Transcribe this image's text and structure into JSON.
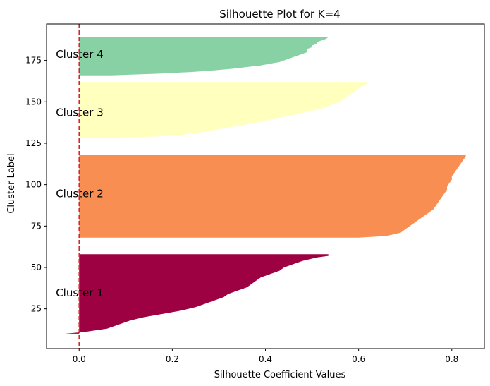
{
  "chart_data": {
    "type": "area",
    "title": "Silhouette Plot for K=4",
    "xlabel": "Silhouette Coefficient Values",
    "ylabel": "Cluster Label",
    "xlim": [
      -0.07,
      0.87
    ],
    "ylim": [
      1,
      197
    ],
    "xticks": [
      0.0,
      0.2,
      0.4,
      0.6,
      0.8
    ],
    "xtick_labels": [
      "0.0",
      "0.2",
      "0.4",
      "0.6",
      "0.8"
    ],
    "yticks": [
      25,
      50,
      75,
      100,
      125,
      150,
      175
    ],
    "ytick_labels": [
      "25",
      "50",
      "75",
      "100",
      "125",
      "150",
      "175"
    ],
    "grid": false,
    "legend": "none",
    "reference_line": {
      "x": 0.0,
      "style": "dashed",
      "color": "#d62728"
    },
    "series": [
      {
        "label": "Cluster 1",
        "label_pos": [
          -0.05,
          35
        ],
        "color": "#9e0142",
        "y_range": [
          10,
          58
        ],
        "profile": [
          [
            10,
            -0.03
          ],
          [
            11,
            0.01
          ],
          [
            13,
            0.06
          ],
          [
            16,
            0.09
          ],
          [
            18,
            0.11
          ],
          [
            20,
            0.14
          ],
          [
            22,
            0.18
          ],
          [
            24,
            0.22
          ],
          [
            26,
            0.25
          ],
          [
            28,
            0.27
          ],
          [
            30,
            0.29
          ],
          [
            32,
            0.31
          ],
          [
            34,
            0.32
          ],
          [
            36,
            0.34
          ],
          [
            38,
            0.36
          ],
          [
            40,
            0.37
          ],
          [
            42,
            0.38
          ],
          [
            44,
            0.39
          ],
          [
            46,
            0.41
          ],
          [
            48,
            0.43
          ],
          [
            50,
            0.44
          ],
          [
            52,
            0.46
          ],
          [
            54,
            0.48
          ],
          [
            56,
            0.51
          ],
          [
            57,
            0.535
          ],
          [
            58,
            0.535
          ]
        ]
      },
      {
        "label": "Cluster 2",
        "label_pos": [
          -0.05,
          95
        ],
        "color": "#f98e52",
        "y_range": [
          68,
          118
        ],
        "profile": [
          [
            68,
            0.6
          ],
          [
            69,
            0.66
          ],
          [
            71,
            0.69
          ],
          [
            73,
            0.7
          ],
          [
            75,
            0.71
          ],
          [
            77,
            0.72
          ],
          [
            79,
            0.73
          ],
          [
            81,
            0.74
          ],
          [
            83,
            0.75
          ],
          [
            85,
            0.76
          ],
          [
            87,
            0.765
          ],
          [
            89,
            0.77
          ],
          [
            91,
            0.775
          ],
          [
            93,
            0.78
          ],
          [
            95,
            0.785
          ],
          [
            97,
            0.79
          ],
          [
            99,
            0.79
          ],
          [
            101,
            0.795
          ],
          [
            103,
            0.8
          ],
          [
            105,
            0.8
          ],
          [
            107,
            0.805
          ],
          [
            109,
            0.81
          ],
          [
            111,
            0.815
          ],
          [
            113,
            0.82
          ],
          [
            115,
            0.825
          ],
          [
            117,
            0.83
          ],
          [
            118,
            0.83
          ]
        ]
      },
      {
        "label": "Cluster 3",
        "label_pos": [
          -0.05,
          144
        ],
        "color": "#ffffbe",
        "y_range": [
          128,
          162
        ],
        "profile": [
          [
            128,
            0.05
          ],
          [
            129,
            0.16
          ],
          [
            130,
            0.22
          ],
          [
            132,
            0.27
          ],
          [
            134,
            0.31
          ],
          [
            136,
            0.35
          ],
          [
            138,
            0.39
          ],
          [
            140,
            0.42
          ],
          [
            142,
            0.46
          ],
          [
            144,
            0.49
          ],
          [
            146,
            0.52
          ],
          [
            148,
            0.54
          ],
          [
            150,
            0.56
          ],
          [
            152,
            0.57
          ],
          [
            154,
            0.58
          ],
          [
            156,
            0.59
          ],
          [
            158,
            0.6
          ],
          [
            160,
            0.61
          ],
          [
            161,
            0.62
          ],
          [
            162,
            0.62
          ]
        ]
      },
      {
        "label": "Cluster 4",
        "label_pos": [
          -0.05,
          179
        ],
        "color": "#88d1a4",
        "y_range": [
          166,
          189
        ],
        "profile": [
          [
            166,
            0.07
          ],
          [
            167,
            0.17
          ],
          [
            168,
            0.24
          ],
          [
            169,
            0.29
          ],
          [
            170,
            0.33
          ],
          [
            171,
            0.36
          ],
          [
            172,
            0.39
          ],
          [
            173,
            0.41
          ],
          [
            174,
            0.43
          ],
          [
            175,
            0.44
          ],
          [
            176,
            0.45
          ],
          [
            177,
            0.46
          ],
          [
            178,
            0.47
          ],
          [
            179,
            0.48
          ],
          [
            180,
            0.49
          ],
          [
            181,
            0.49
          ],
          [
            182,
            0.49
          ],
          [
            183,
            0.5
          ],
          [
            184,
            0.5
          ],
          [
            185,
            0.51
          ],
          [
            186,
            0.51
          ],
          [
            187,
            0.52
          ],
          [
            188,
            0.53
          ],
          [
            189,
            0.535
          ]
        ]
      }
    ]
  }
}
